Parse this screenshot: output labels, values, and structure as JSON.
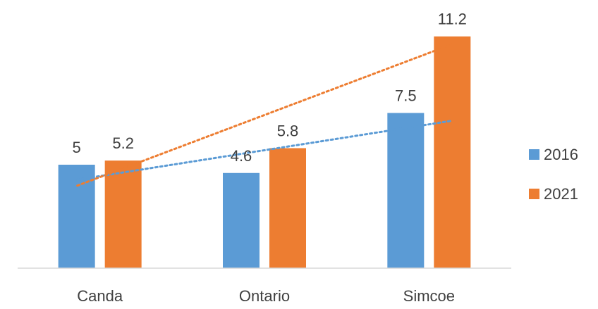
{
  "chart_data": {
    "type": "bar",
    "categories": [
      "Canda",
      "Ontario",
      "Simcoe"
    ],
    "series": [
      {
        "name": "2016",
        "values": [
          5,
          4.6,
          7.5
        ],
        "color": "#5B9BD5"
      },
      {
        "name": "2021",
        "values": [
          5.2,
          5.8,
          11.2
        ],
        "color": "#ED7D31"
      }
    ],
    "trendlines": [
      {
        "series": "2016",
        "type": "linear",
        "style": "dotted"
      },
      {
        "series": "2021",
        "type": "linear",
        "style": "dotted"
      }
    ],
    "title": "",
    "xlabel": "",
    "ylabel": "",
    "ylim": [
      0,
      12
    ],
    "grid": false,
    "legend": "right",
    "axis_color": "#D9D9D9"
  }
}
